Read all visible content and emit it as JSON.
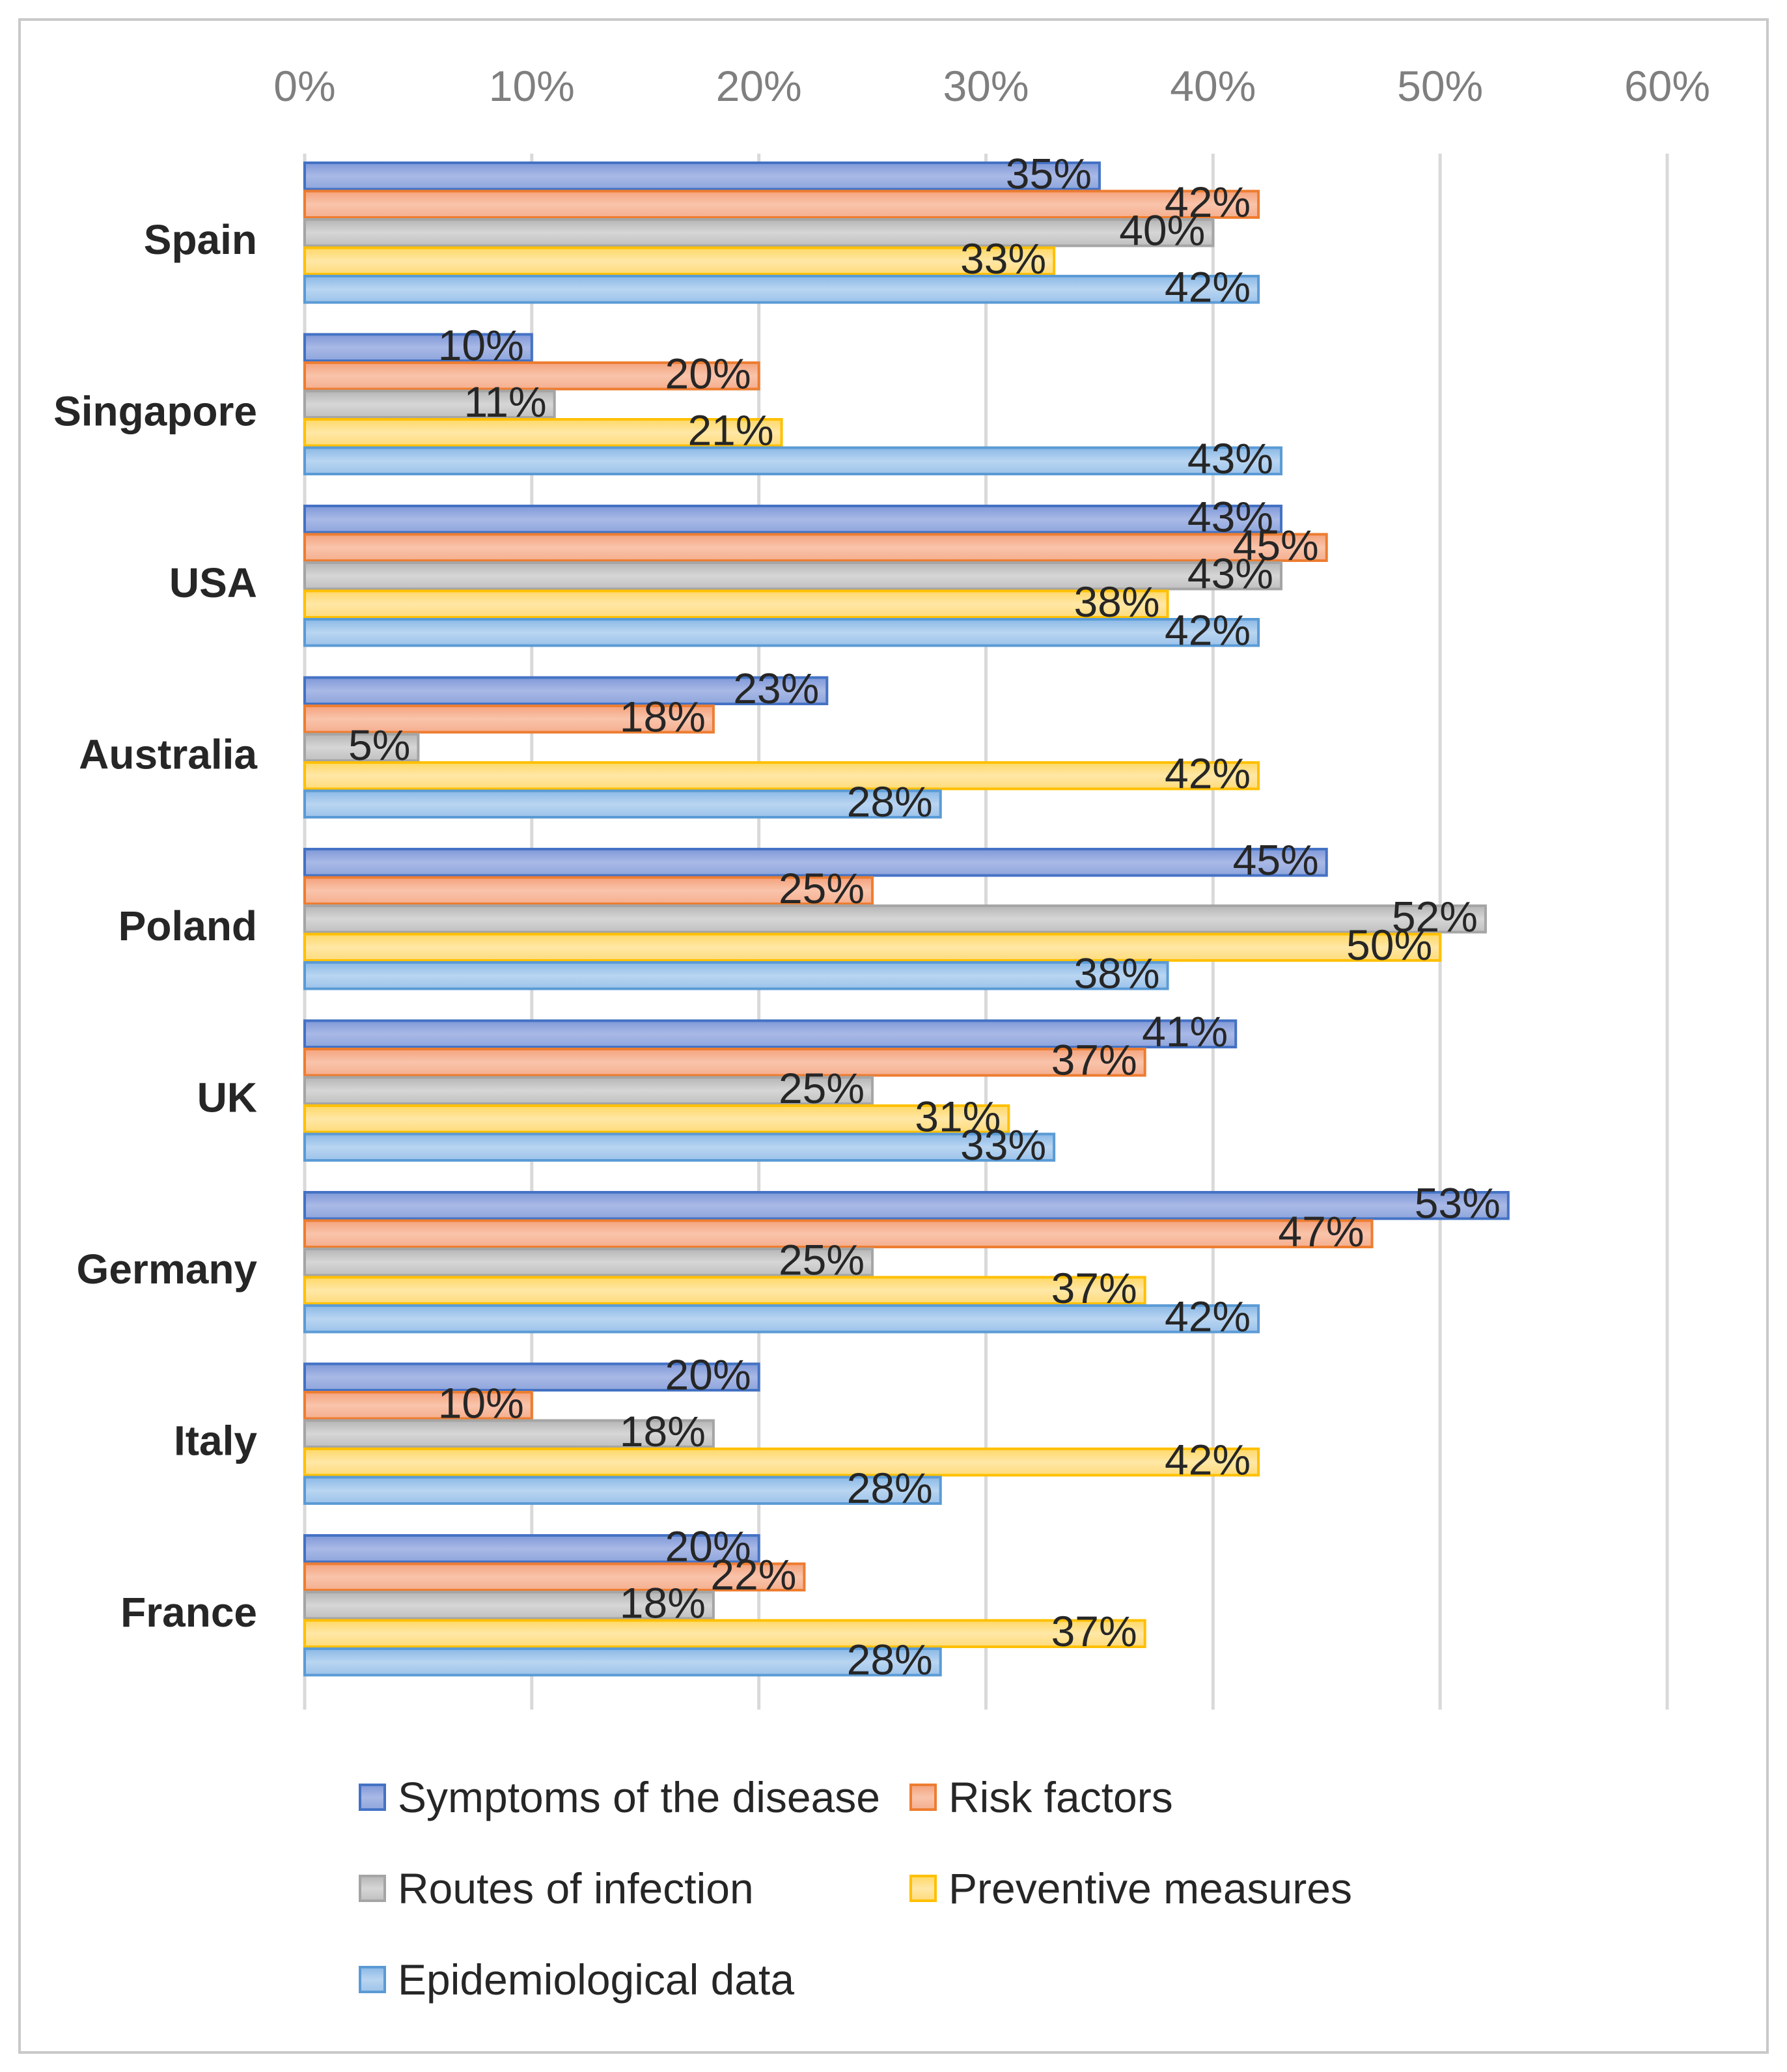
{
  "chart_data": {
    "type": "bar",
    "orientation": "horizontal",
    "title": "",
    "xlabel": "",
    "ylabel": "",
    "xlim": [
      0,
      0.6
    ],
    "x_ticks": [
      "0%",
      "10%",
      "20%",
      "30%",
      "40%",
      "50%",
      "60%"
    ],
    "x_axis_position": "top",
    "grid": true,
    "legend_position": "bottom",
    "categories": [
      "Spain",
      "Singapore",
      "USA",
      "Australia",
      "Poland",
      "UK",
      "Germany",
      "Italy",
      "France"
    ],
    "series": [
      {
        "name": "Symptoms of the disease",
        "color": "#4472C4",
        "values": [
          0.35,
          0.1,
          0.43,
          0.23,
          0.45,
          0.41,
          0.53,
          0.2,
          0.2
        ],
        "labels": [
          "35%",
          "10%",
          "43%",
          "23%",
          "45%",
          "41%",
          "53%",
          "20%",
          "20%"
        ]
      },
      {
        "name": "Risk factors",
        "color": "#ED7D31",
        "values": [
          0.42,
          0.2,
          0.45,
          0.18,
          0.25,
          0.37,
          0.47,
          0.1,
          0.22
        ],
        "labels": [
          "42%",
          "20%",
          "45%",
          "18%",
          "25%",
          "37%",
          "47%",
          "10%",
          "22%"
        ]
      },
      {
        "name": "Routes of infection",
        "color": "#A5A5A5",
        "values": [
          0.4,
          0.11,
          0.43,
          0.05,
          0.52,
          0.25,
          0.25,
          0.18,
          0.18
        ],
        "labels": [
          "40%",
          "11%",
          "43%",
          "5%",
          "52%",
          "25%",
          "25%",
          "18%",
          "18%"
        ]
      },
      {
        "name": "Preventive measures",
        "color": "#FFC000",
        "values": [
          0.33,
          0.21,
          0.38,
          0.42,
          0.5,
          0.31,
          0.37,
          0.42,
          0.37
        ],
        "labels": [
          "33%",
          "21%",
          "38%",
          "42%",
          "50%",
          "31%",
          "37%",
          "42%",
          "37%"
        ]
      },
      {
        "name": "Epidemiological data",
        "color": "#5B9BD5",
        "values": [
          0.42,
          0.43,
          0.42,
          0.28,
          0.38,
          0.33,
          0.42,
          0.28,
          0.28
        ],
        "labels": [
          "42%",
          "43%",
          "42%",
          "28%",
          "38%",
          "33%",
          "42%",
          "28%",
          "28%"
        ]
      }
    ]
  }
}
